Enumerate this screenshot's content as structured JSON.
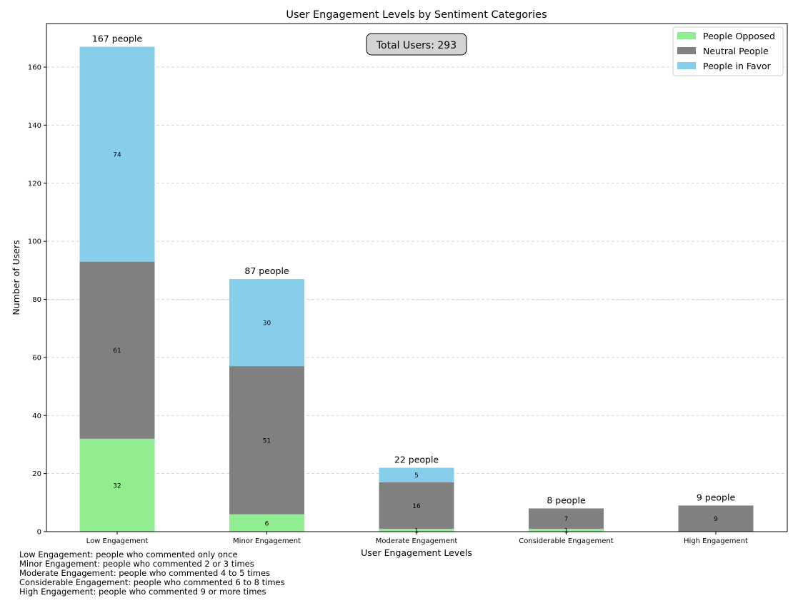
{
  "chart_data": {
    "type": "bar",
    "stacked": true,
    "title": "User Engagement Levels by Sentiment Categories",
    "xlabel": "User Engagement Levels",
    "ylabel": "Number of Users",
    "ylim": [
      0,
      175
    ],
    "yticks": [
      0,
      20,
      40,
      60,
      80,
      100,
      120,
      140,
      160
    ],
    "grid": "y-dashed",
    "legend_position": "top-right",
    "categories": [
      "Low Engagement",
      "Minor Engagement",
      "Moderate Engagement",
      "Considerable Engagement",
      "High Engagement"
    ],
    "series": [
      {
        "name": "People Opposed",
        "color": "#90ee90",
        "values": [
          32,
          6,
          1,
          1,
          0
        ]
      },
      {
        "name": "Neutral People",
        "color": "#808080",
        "values": [
          61,
          51,
          16,
          7,
          9
        ]
      },
      {
        "name": "People in Favor",
        "color": "#87ceeb",
        "values": [
          74,
          30,
          5,
          0,
          0
        ]
      }
    ],
    "totals": [
      167,
      87,
      22,
      8,
      9
    ],
    "total_labels": [
      "167 people",
      "87 people",
      "22 people",
      "8 people",
      "9 people"
    ],
    "total_users_label": "Total Users: 293"
  },
  "notes": [
    "Low Engagement: people who commented only once",
    "Minor Engagement: people who commented 2 or 3 times",
    "Moderate Engagement: people who commented 4 to 5 times",
    "Considerable Engagement: people who commented 6 to 8 times",
    "High Engagement: people who commented 9 or more times"
  ]
}
